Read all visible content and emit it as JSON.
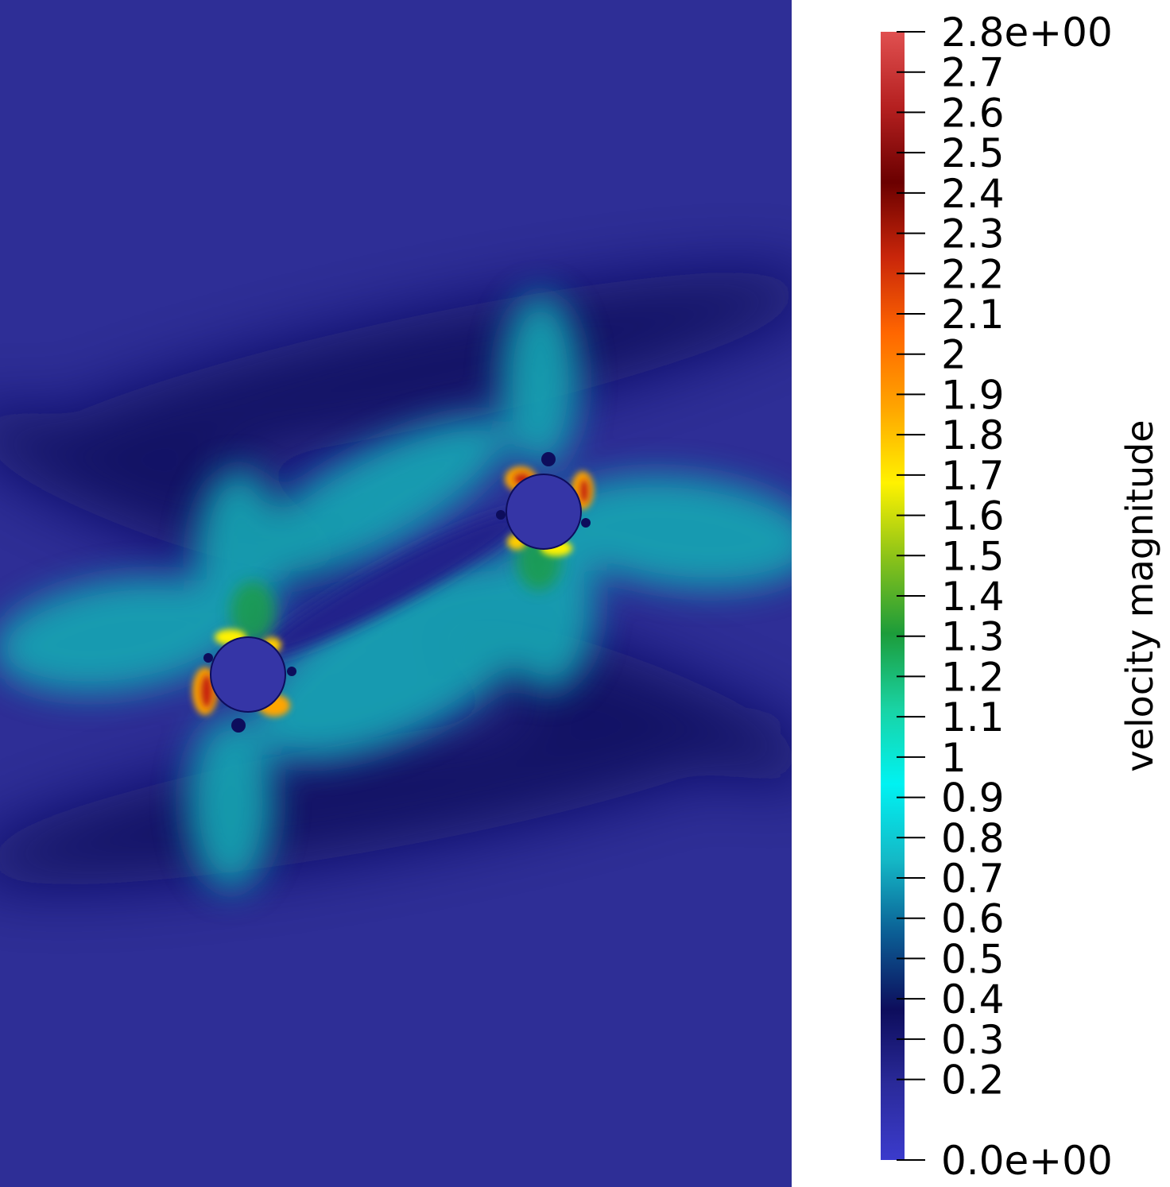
{
  "figure": {
    "colorbar": {
      "title": "velocity magnitude",
      "min": 0.0,
      "max": 2.8,
      "tick_labels": [
        {
          "value": 2.8,
          "label": "2.8e+00"
        },
        {
          "value": 2.7,
          "label": "2.7"
        },
        {
          "value": 2.6,
          "label": "2.6"
        },
        {
          "value": 2.5,
          "label": "2.5"
        },
        {
          "value": 2.4,
          "label": "2.4"
        },
        {
          "value": 2.3,
          "label": "2.3"
        },
        {
          "value": 2.2,
          "label": "2.2"
        },
        {
          "value": 2.1,
          "label": "2.1"
        },
        {
          "value": 2.0,
          "label": "2"
        },
        {
          "value": 1.9,
          "label": "1.9"
        },
        {
          "value": 1.8,
          "label": "1.8"
        },
        {
          "value": 1.7,
          "label": "1.7"
        },
        {
          "value": 1.6,
          "label": "1.6"
        },
        {
          "value": 1.5,
          "label": "1.5"
        },
        {
          "value": 1.4,
          "label": "1.4"
        },
        {
          "value": 1.3,
          "label": "1.3"
        },
        {
          "value": 1.2,
          "label": "1.2"
        },
        {
          "value": 1.1,
          "label": "1.1"
        },
        {
          "value": 1.0,
          "label": "1"
        },
        {
          "value": 0.9,
          "label": "0.9"
        },
        {
          "value": 0.8,
          "label": "0.8"
        },
        {
          "value": 0.7,
          "label": "0.7"
        },
        {
          "value": 0.6,
          "label": "0.6"
        },
        {
          "value": 0.5,
          "label": "0.5"
        },
        {
          "value": 0.4,
          "label": "0.4"
        },
        {
          "value": 0.3,
          "label": "0.3"
        },
        {
          "value": 0.2,
          "label": "0.2"
        },
        {
          "value": 0.0,
          "label": "0.0e+00"
        }
      ],
      "colormap": [
        "#3b3bcc",
        "#2a2a9a",
        "#0d0d5c",
        "#0b5d94",
        "#14b9c7",
        "#00f2f2",
        "#19d3a4",
        "#1c9c3a",
        "#8ac219",
        "#fff200",
        "#ffa500",
        "#ff6600",
        "#c9260a",
        "#6b0000",
        "#b52020",
        "#e05050"
      ]
    },
    "field": {
      "background_color": "#2e2e96",
      "obstacle_color": "#3535a6",
      "obstacles": 2
    }
  }
}
